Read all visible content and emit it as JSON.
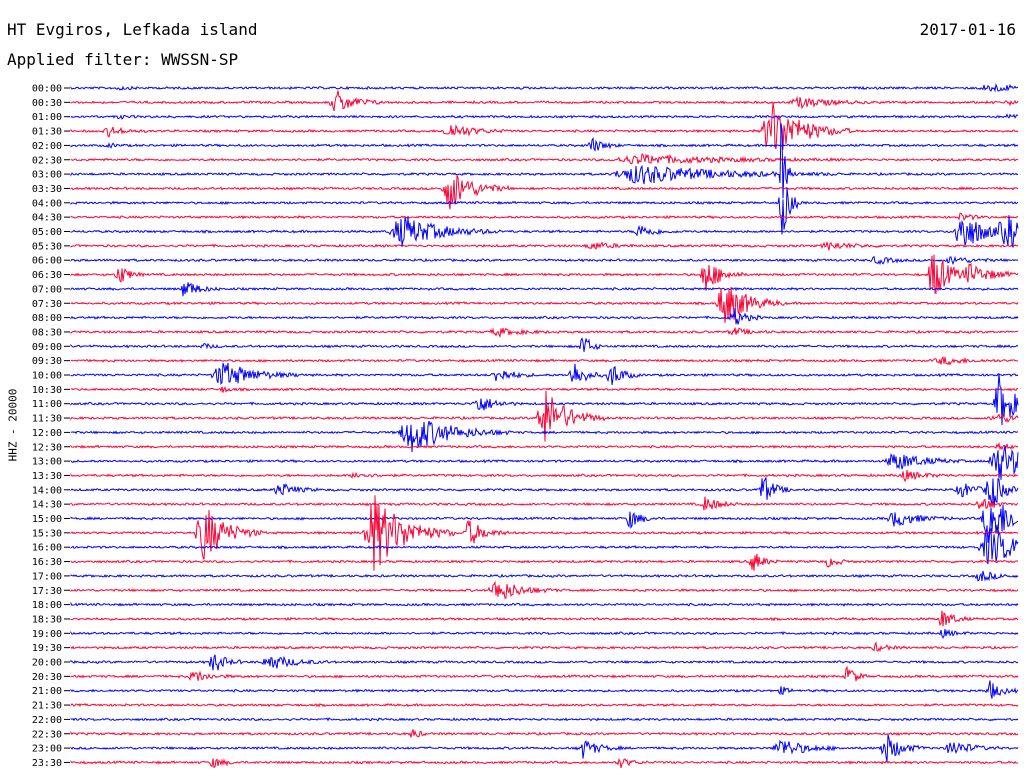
{
  "header": {
    "station": "HT Evgiros, Lefkada island",
    "date": "2017-01-16",
    "filter": "Applied filter: WWSSN-SP"
  },
  "chart_data": {
    "type": "line",
    "ylabel": "HHZ - 20000",
    "colors": [
      "#0000ff",
      "#ff0033"
    ],
    "rows": [
      "00:00",
      "00:30",
      "01:00",
      "01:30",
      "02:00",
      "02:30",
      "03:00",
      "03:30",
      "04:00",
      "04:30",
      "05:00",
      "05:30",
      "06:00",
      "06:30",
      "07:00",
      "07:30",
      "08:00",
      "08:30",
      "09:00",
      "09:30",
      "10:00",
      "10:30",
      "11:00",
      "11:30",
      "12:00",
      "12:30",
      "13:00",
      "13:30",
      "14:00",
      "14:30",
      "15:00",
      "15:30",
      "16:00",
      "16:30",
      "17:00",
      "17:30",
      "18:00",
      "18:30",
      "19:00",
      "19:30",
      "20:00",
      "20:30",
      "21:00",
      "21:30",
      "22:00",
      "22:30",
      "23:00",
      "23:30"
    ],
    "events": [
      [
        0,
        0.97,
        4,
        80
      ],
      [
        0,
        0.05,
        2,
        25
      ],
      [
        1,
        0.28,
        12,
        50
      ],
      [
        1,
        0.77,
        5,
        80
      ],
      [
        1,
        0.99,
        3,
        20
      ],
      [
        2,
        0.05,
        2,
        20
      ],
      [
        2,
        0.99,
        3,
        20
      ],
      [
        3,
        0.04,
        5,
        40
      ],
      [
        3,
        0.4,
        8,
        60
      ],
      [
        3,
        0.74,
        30,
        80
      ],
      [
        4,
        0.55,
        8,
        30
      ],
      [
        4,
        0.04,
        2,
        20
      ],
      [
        5,
        0.6,
        5,
        200
      ],
      [
        6,
        0.6,
        10,
        200
      ],
      [
        6,
        0.75,
        60,
        10
      ],
      [
        7,
        0.4,
        22,
        60
      ],
      [
        8,
        0.75,
        40,
        20
      ],
      [
        9,
        0.94,
        4,
        30
      ],
      [
        10,
        0.35,
        16,
        100
      ],
      [
        10,
        0.6,
        7,
        40
      ],
      [
        10,
        0.94,
        22,
        60
      ],
      [
        10,
        0.99,
        14,
        90
      ],
      [
        11,
        0.55,
        4,
        50
      ],
      [
        11,
        0.8,
        4,
        60
      ],
      [
        12,
        0.85,
        4,
        40
      ],
      [
        12,
        0.93,
        4,
        50
      ],
      [
        13,
        0.05,
        12,
        25
      ],
      [
        13,
        0.67,
        18,
        40
      ],
      [
        13,
        0.91,
        28,
        40
      ],
      [
        13,
        0.95,
        10,
        60
      ],
      [
        14,
        0.12,
        10,
        35
      ],
      [
        15,
        0.69,
        25,
        60
      ],
      [
        16,
        0.7,
        10,
        30
      ],
      [
        17,
        0.45,
        4,
        60
      ],
      [
        17,
        0.7,
        4,
        40
      ],
      [
        18,
        0.54,
        15,
        20
      ],
      [
        18,
        0.14,
        3,
        20
      ],
      [
        19,
        0.92,
        4,
        60
      ],
      [
        20,
        0.16,
        14,
        80
      ],
      [
        20,
        0.45,
        8,
        40
      ],
      [
        20,
        0.53,
        16,
        30
      ],
      [
        20,
        0.57,
        14,
        30
      ],
      [
        21,
        0.16,
        3,
        20
      ],
      [
        22,
        0.43,
        10,
        40
      ],
      [
        22,
        0.98,
        30,
        40
      ],
      [
        23,
        0.5,
        30,
        60
      ],
      [
        23,
        0.98,
        4,
        80
      ],
      [
        24,
        0.36,
        20,
        100
      ],
      [
        25,
        0.98,
        4,
        30
      ],
      [
        26,
        0.87,
        10,
        70
      ],
      [
        26,
        0.98,
        20,
        80
      ],
      [
        27,
        0.88,
        5,
        50
      ],
      [
        27,
        0.3,
        3,
        40
      ],
      [
        28,
        0.22,
        8,
        40
      ],
      [
        28,
        0.73,
        17,
        30
      ],
      [
        28,
        0.94,
        8,
        40
      ],
      [
        28,
        0.97,
        25,
        30
      ],
      [
        29,
        0.67,
        8,
        35
      ],
      [
        29,
        0.96,
        8,
        30
      ],
      [
        30,
        0.59,
        10,
        30
      ],
      [
        30,
        0.87,
        8,
        60
      ],
      [
        30,
        0.97,
        30,
        60
      ],
      [
        31,
        0.14,
        30,
        60
      ],
      [
        31,
        0.32,
        40,
        80
      ],
      [
        31,
        0.42,
        14,
        40
      ],
      [
        32,
        0.97,
        20,
        80
      ],
      [
        33,
        0.72,
        12,
        25
      ],
      [
        33,
        0.8,
        6,
        25
      ],
      [
        34,
        0.96,
        6,
        40
      ],
      [
        35,
        0.45,
        12,
        60
      ],
      [
        37,
        0.92,
        10,
        30
      ],
      [
        38,
        0.92,
        4,
        30
      ],
      [
        39,
        0.85,
        4,
        30
      ],
      [
        40,
        0.15,
        12,
        30
      ],
      [
        40,
        0.21,
        8,
        60
      ],
      [
        41,
        0.13,
        6,
        40
      ],
      [
        41,
        0.82,
        14,
        20
      ],
      [
        42,
        0.75,
        4,
        20
      ],
      [
        42,
        0.97,
        10,
        30
      ],
      [
        45,
        0.36,
        6,
        20
      ],
      [
        46,
        0.54,
        10,
        40
      ],
      [
        46,
        0.75,
        10,
        60
      ],
      [
        46,
        0.86,
        16,
        40
      ],
      [
        46,
        0.93,
        8,
        50
      ],
      [
        47,
        0.15,
        5,
        30
      ],
      [
        47,
        0.58,
        5,
        30
      ]
    ]
  }
}
